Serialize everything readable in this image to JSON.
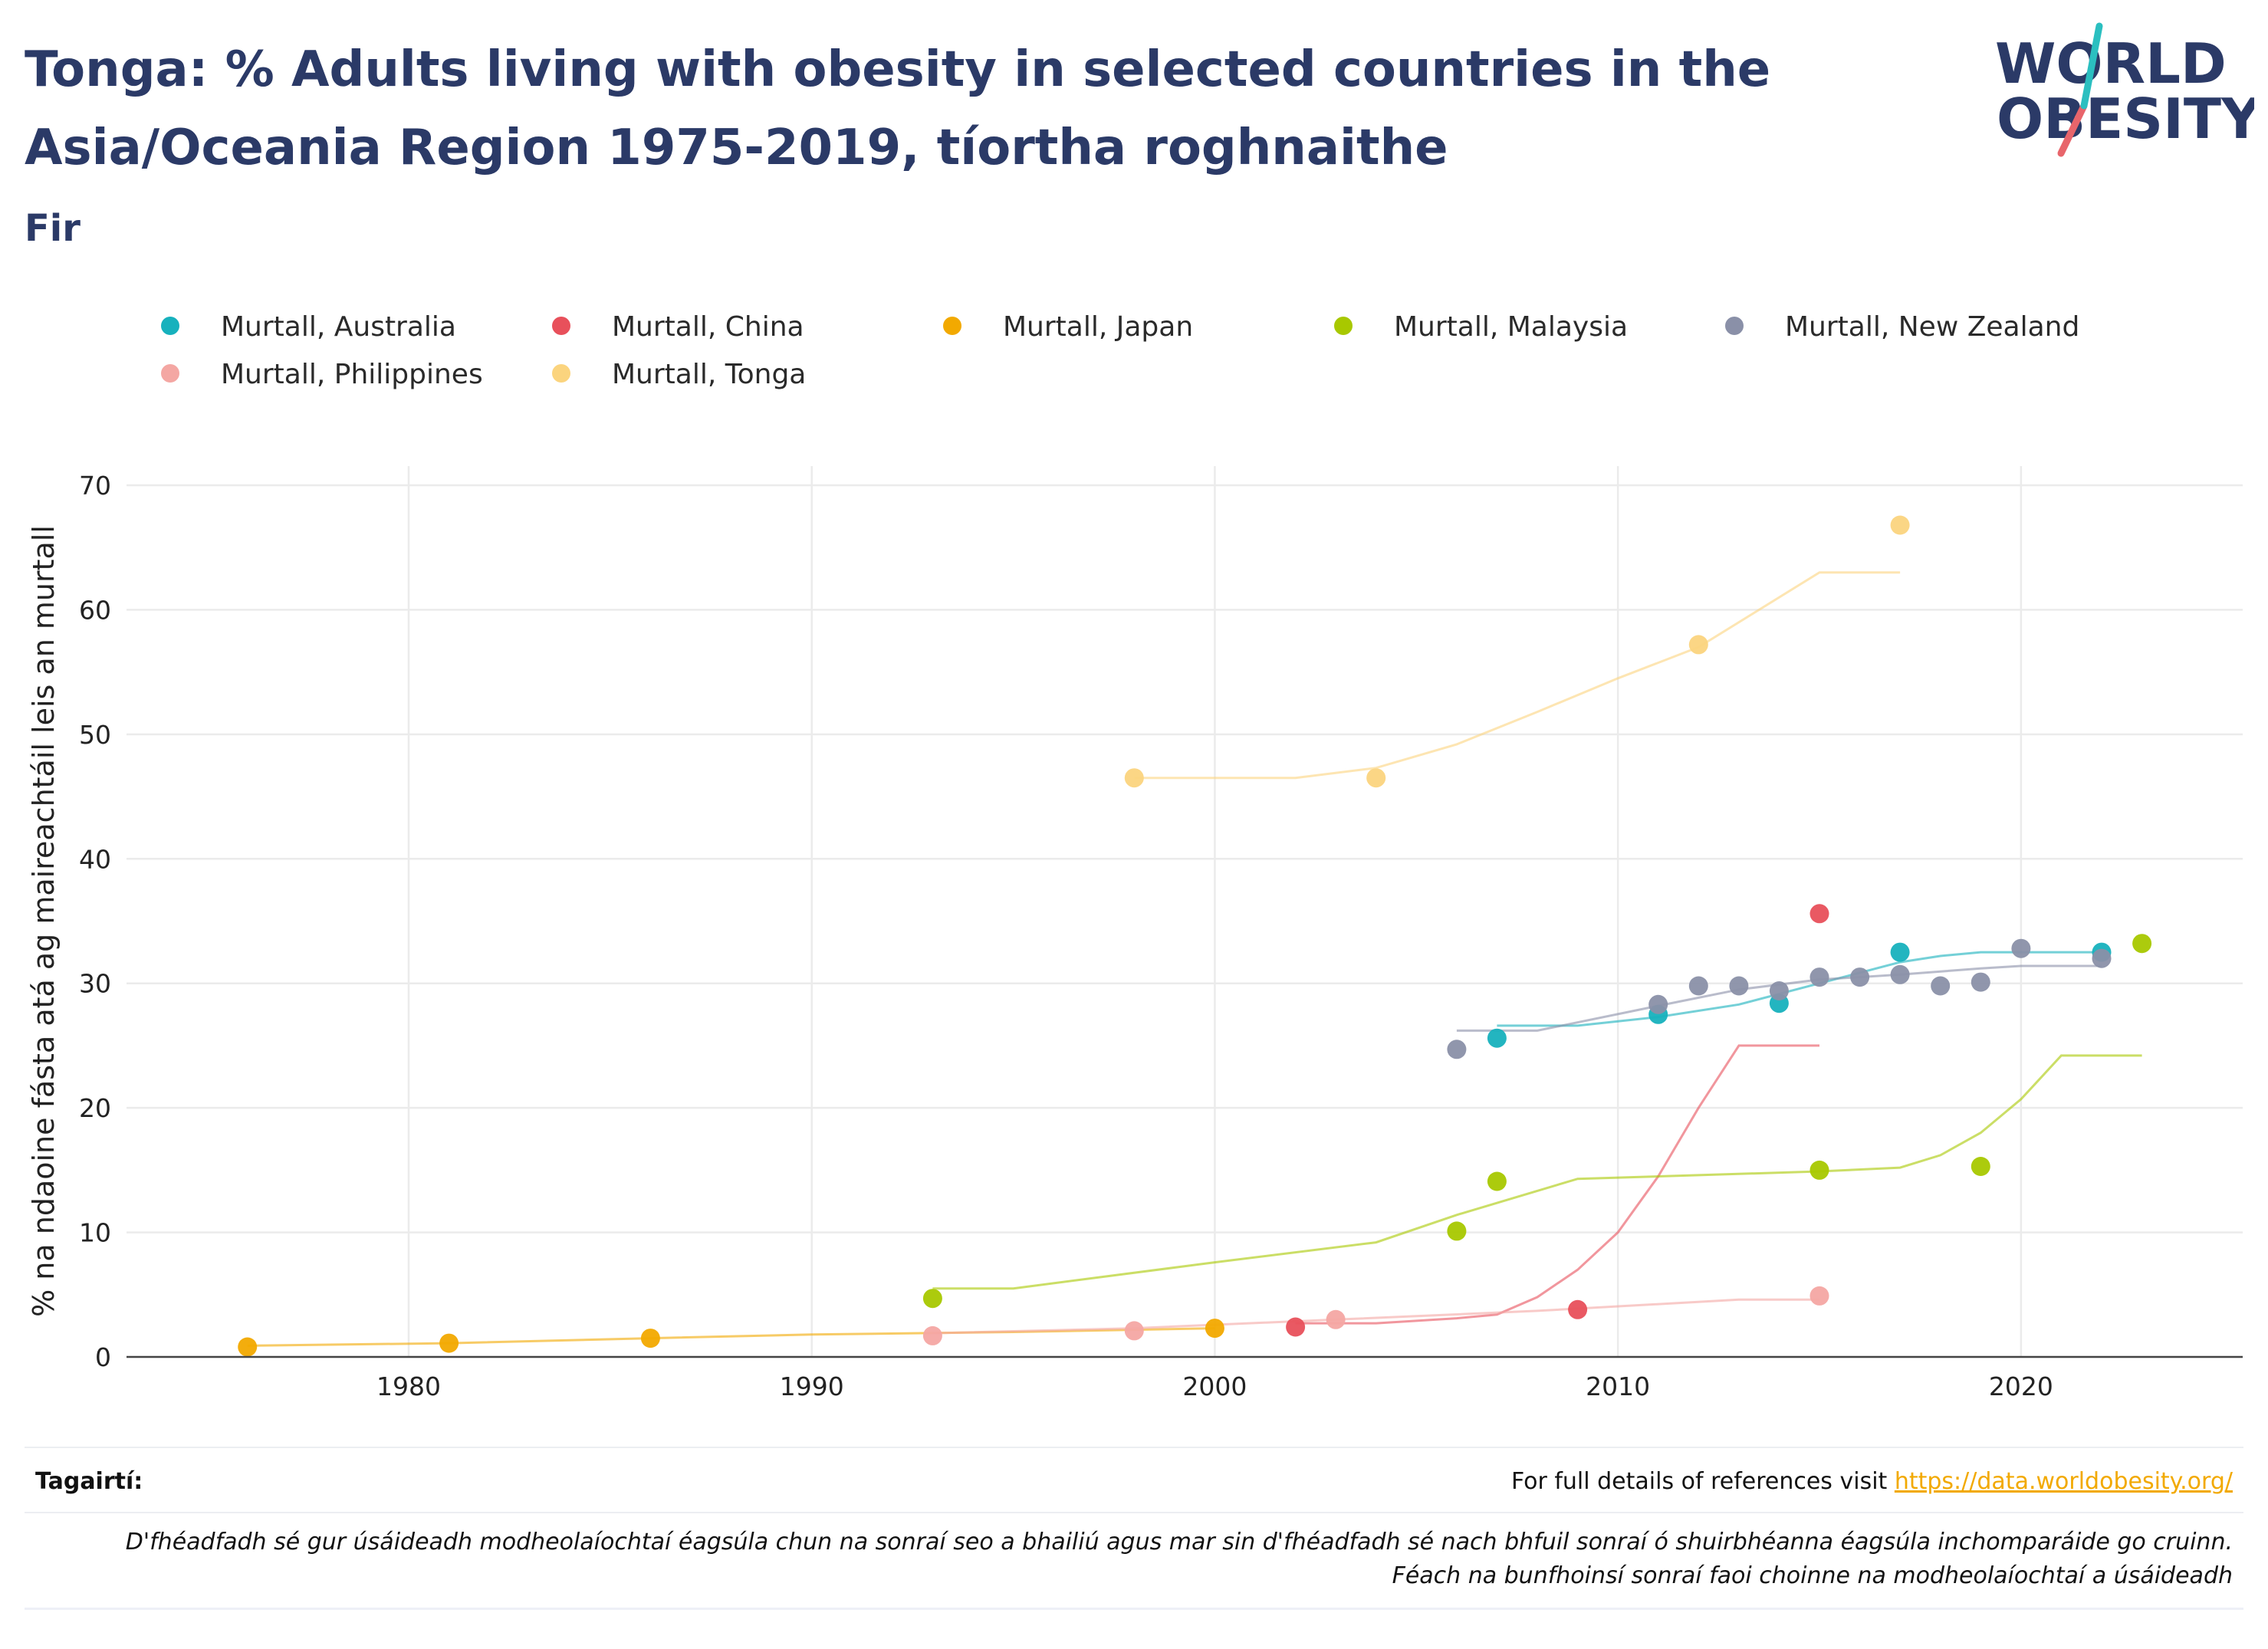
{
  "header": {
    "title": "Tonga: % Adults living with obesity in selected countries in the Asia/Oceania Region 1975-2019, tíortha roghnaithe",
    "subtitle": "Fir",
    "logo_line1": "WORLD",
    "logo_line2": "OBESITY"
  },
  "footer": {
    "references_label": "Tagairtí:",
    "references_text": "For full details of references visit ",
    "references_link": "https://data.worldobesity.org/",
    "disclaimer_line1": "D'fhéadfadh sé gur úsáideadh modheolaíochtaí éagsúla chun na sonraí seo a bhailiú agus mar sin d'fhéadfadh sé nach bhfuil sonraí ó shuirbhéanna éagsúla inchomparáide go cruinn.",
    "disclaimer_line2": "Féach na bunfhoinsí sonraí faoi choinne na modheolaíochtaí a úsáideadh"
  },
  "chart_data": {
    "type": "scatter",
    "title": "Tonga: % Adults living with obesity in selected countries in the Asia/Oceania Region 1975-2019, tíortha roghnaithe",
    "subtitle": "Fir",
    "xlabel": "",
    "ylabel": "% na ndaoine fásta atá ag maireachtáil leis an murtall",
    "xlim": [
      1973,
      2025.5
    ],
    "ylim": [
      0,
      70
    ],
    "xticks": [
      1980,
      1990,
      2000,
      2010,
      2020
    ],
    "yticks": [
      0,
      10,
      20,
      30,
      40,
      50,
      60,
      70
    ],
    "grid": true,
    "legend_position": "top",
    "series": [
      {
        "name": "Murtall, Australia",
        "color": "#17b1bd",
        "points": [
          [
            2007,
            25.6
          ],
          [
            2011,
            27.5
          ],
          [
            2014,
            28.4
          ],
          [
            2017,
            32.5
          ],
          [
            2022,
            32.5
          ]
        ],
        "trend": [
          [
            2007,
            26.6
          ],
          [
            2009,
            26.6
          ],
          [
            2011,
            27.3
          ],
          [
            2013,
            28.3
          ],
          [
            2015,
            30.0
          ],
          [
            2017,
            31.7
          ],
          [
            2018,
            32.2
          ],
          [
            2019,
            32.5
          ],
          [
            2022,
            32.5
          ]
        ]
      },
      {
        "name": "Murtall, China",
        "color": "#e8505b",
        "points": [
          [
            2002,
            2.4
          ],
          [
            2009,
            3.8
          ],
          [
            2015,
            35.6
          ]
        ],
        "trend": [
          [
            2002,
            2.7
          ],
          [
            2004,
            2.7
          ],
          [
            2006,
            3.1
          ],
          [
            2007,
            3.4
          ],
          [
            2008,
            4.8
          ],
          [
            2009,
            7.0
          ],
          [
            2010,
            10.0
          ],
          [
            2011,
            14.5
          ],
          [
            2012,
            20.0
          ],
          [
            2013,
            25.0
          ],
          [
            2015,
            25.0
          ]
        ]
      },
      {
        "name": "Murtall, Japan",
        "color": "#f2a900",
        "points": [
          [
            1976,
            0.8
          ],
          [
            1981,
            1.1
          ],
          [
            1986,
            1.5
          ],
          [
            2000,
            2.3
          ]
        ],
        "trend": [
          [
            1976,
            0.9
          ],
          [
            1981,
            1.1
          ],
          [
            1986,
            1.5
          ],
          [
            1990,
            1.8
          ],
          [
            1995,
            2.0
          ],
          [
            2000,
            2.3
          ]
        ]
      },
      {
        "name": "Murtall, Malaysia",
        "color": "#a8c800",
        "points": [
          [
            1993,
            4.7
          ],
          [
            2006,
            10.1
          ],
          [
            2007,
            14.1
          ],
          [
            2015,
            15.0
          ],
          [
            2019,
            15.3
          ],
          [
            2023,
            33.2
          ]
        ],
        "trend": [
          [
            1993,
            5.5
          ],
          [
            1995,
            5.5
          ],
          [
            2000,
            7.6
          ],
          [
            2004,
            9.2
          ],
          [
            2006,
            11.4
          ],
          [
            2009,
            14.3
          ],
          [
            2012,
            14.6
          ],
          [
            2015,
            14.9
          ],
          [
            2017,
            15.2
          ],
          [
            2018,
            16.2
          ],
          [
            2019,
            18.0
          ],
          [
            2020,
            20.7
          ],
          [
            2021,
            24.2
          ],
          [
            2023,
            24.2
          ]
        ]
      },
      {
        "name": "Murtall, New Zealand",
        "color": "#8a90a8",
        "points": [
          [
            2006,
            24.7
          ],
          [
            2011,
            28.3
          ],
          [
            2012,
            29.8
          ],
          [
            2013,
            29.8
          ],
          [
            2014,
            29.4
          ],
          [
            2015,
            30.5
          ],
          [
            2016,
            30.5
          ],
          [
            2017,
            30.7
          ],
          [
            2018,
            29.8
          ],
          [
            2019,
            30.1
          ],
          [
            2020,
            32.8
          ],
          [
            2022,
            32.0
          ]
        ],
        "trend": [
          [
            2006,
            26.2
          ],
          [
            2008,
            26.2
          ],
          [
            2011,
            28.2
          ],
          [
            2013,
            29.5
          ],
          [
            2015,
            30.3
          ],
          [
            2017,
            30.7
          ],
          [
            2019,
            31.2
          ],
          [
            2020,
            31.4
          ],
          [
            2022,
            31.4
          ]
        ]
      },
      {
        "name": "Murtall, Philippines",
        "color": "#f4a7a3",
        "points": [
          [
            1993,
            1.7
          ],
          [
            1998,
            2.1
          ],
          [
            2003,
            3.0
          ],
          [
            2015,
            4.9
          ]
        ],
        "trend": [
          [
            1993,
            1.9
          ],
          [
            1998,
            2.3
          ],
          [
            2003,
            3.0
          ],
          [
            2008,
            3.7
          ],
          [
            2013,
            4.6
          ],
          [
            2015,
            4.6
          ]
        ]
      },
      {
        "name": "Murtall, Tonga",
        "color": "#fbd47e",
        "points": [
          [
            1998,
            46.5
          ],
          [
            2004,
            46.5
          ],
          [
            2012,
            57.2
          ],
          [
            2017,
            66.8
          ]
        ],
        "trend": [
          [
            1998,
            46.5
          ],
          [
            2002,
            46.5
          ],
          [
            2004,
            47.3
          ],
          [
            2006,
            49.2
          ],
          [
            2008,
            51.8
          ],
          [
            2010,
            54.5
          ],
          [
            2012,
            57.0
          ],
          [
            2015,
            63.0
          ],
          [
            2017,
            63.0
          ]
        ]
      }
    ]
  }
}
